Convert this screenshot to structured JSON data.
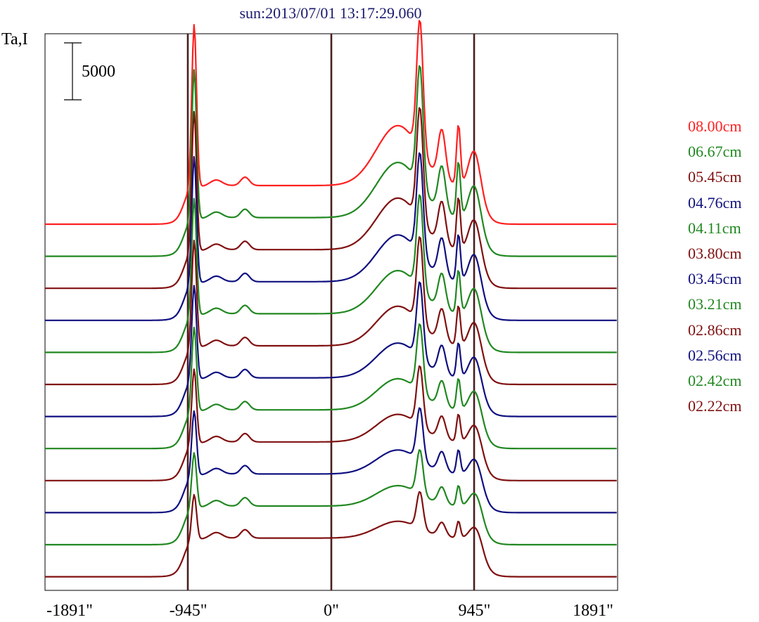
{
  "chart_data": {
    "type": "line",
    "title": "sun:2013/07/01 13:17:29.060",
    "ylabel": "Ta,I",
    "xlabel": "",
    "scale_bar_label": "5000",
    "x_ticks": [
      "-1891\"",
      "-945\"",
      "0\"",
      "945\"",
      "1891\""
    ],
    "x_tick_values": [
      -1891,
      -945,
      0,
      945,
      1891
    ],
    "xlim": [
      -1891,
      1891
    ],
    "vertical_markers": [
      -945,
      0,
      945
    ],
    "grid": false,
    "legend_position": "right",
    "series": [
      {
        "name": "08.00cm",
        "color": "#ff2020",
        "peak_scale": 1.0,
        "peak_x": -906,
        "peak_value": 10500,
        "right_peak_x": 585,
        "right_peak_value": 10500
      },
      {
        "name": "06.67cm",
        "color": "#218821",
        "peak_scale": 0.92
      },
      {
        "name": "05.45cm",
        "color": "#801010",
        "peak_scale": 0.86
      },
      {
        "name": "04.76cm",
        "color": "#101080",
        "peak_scale": 0.78
      },
      {
        "name": "04.11cm",
        "color": "#218821",
        "peak_scale": 0.72
      },
      {
        "name": "03.80cm",
        "color": "#801010",
        "peak_scale": 0.66
      },
      {
        "name": "03.45cm",
        "color": "#101080",
        "peak_scale": 0.58
      },
      {
        "name": "03.21cm",
        "color": "#218821",
        "peak_scale": 0.52
      },
      {
        "name": "02.86cm",
        "color": "#801010",
        "peak_scale": 0.46
      },
      {
        "name": "02.56cm",
        "color": "#101080",
        "peak_scale": 0.4
      },
      {
        "name": "02.42cm",
        "color": "#218821",
        "peak_scale": 0.34
      },
      {
        "name": "02.22cm",
        "color": "#801010",
        "peak_scale": 0.28
      }
    ]
  }
}
